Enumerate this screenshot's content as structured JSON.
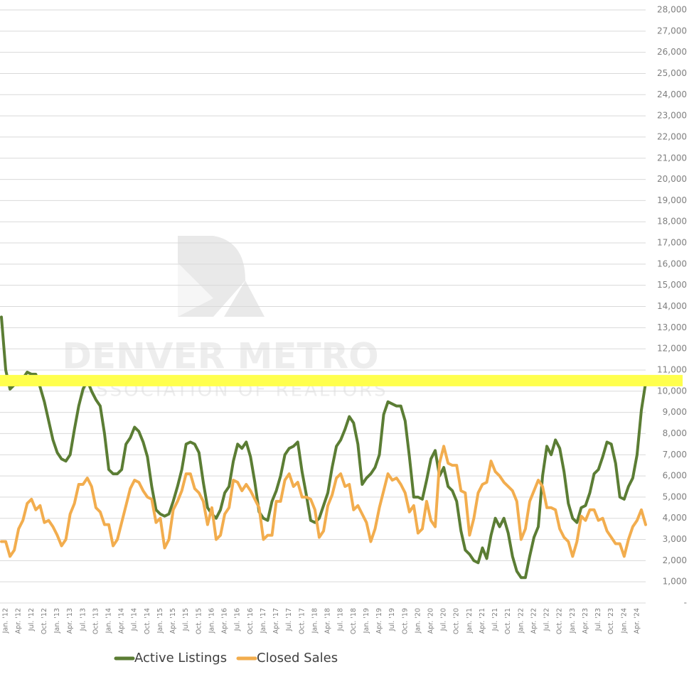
{
  "chart_data": {
    "type": "line",
    "watermark": [
      "DENVER METRO",
      "ASSOCIATION OF REALTORS"
    ],
    "highlight": {
      "value": 10500,
      "color": "#ffff4d"
    },
    "grid": true,
    "legend": "bottom",
    "categories": [
      null,
      "Jan. '12",
      null,
      null,
      "Apr. '12",
      null,
      null,
      "Jul. '12",
      null,
      null,
      "Oct. '12",
      null,
      null,
      "Jan. '13",
      null,
      null,
      "Apr. '13",
      null,
      null,
      "Jul. '13",
      null,
      null,
      "Oct. '13",
      null,
      null,
      "Jan. '14",
      null,
      null,
      "Apr. '14",
      null,
      null,
      "Jul. '14",
      null,
      null,
      "Oct. '14",
      null,
      null,
      "Jan. '15",
      null,
      null,
      "Apr. '15",
      null,
      null,
      "Jul. '15",
      null,
      null,
      "Oct. '15",
      null,
      null,
      "Jan. '16",
      null,
      null,
      "Apr. '16",
      null,
      null,
      "Jul. '16",
      null,
      null,
      "Oct. '16",
      null,
      null,
      "Jan. '17",
      null,
      null,
      "Apr. '17",
      null,
      null,
      "Jul. '17",
      null,
      null,
      "Oct. '17",
      null,
      null,
      "Jan. '18",
      null,
      null,
      "Apr. '18",
      null,
      null,
      "Jul. '18",
      null,
      null,
      "Oct. '18",
      null,
      null,
      "Jan. '19",
      null,
      null,
      "Apr. '19",
      null,
      null,
      "Jul. '19",
      null,
      null,
      "Oct. '19",
      null,
      null,
      "Jan. '20",
      null,
      null,
      "Apr. '20",
      null,
      null,
      "Jul. '20",
      null,
      null,
      "Oct. '20",
      null,
      null,
      "Jan. '21",
      null,
      null,
      "Apr. '21",
      null,
      null,
      "Jul. '21",
      null,
      null,
      "Oct. '21",
      null,
      null,
      "Jan. '22",
      null,
      null,
      "Apr. '22",
      null,
      null,
      "Jul. '22",
      null,
      null,
      "Oct. '22",
      null,
      null,
      "Jan. '23",
      null,
      null,
      "Apr. '23",
      null,
      null,
      "Jul. '23",
      null,
      null,
      "Oct. '23",
      null,
      null,
      "Jan. '24",
      null,
      null,
      "Apr. '24",
      null,
      null
    ],
    "series": [
      {
        "name": "Active Listings",
        "color": "#5b7d34",
        "values": [
          13500,
          11000,
          10100,
          10300,
          10300,
          10600,
          10900,
          10800,
          10800,
          10200,
          9500,
          8600,
          7700,
          7100,
          6800,
          6700,
          7000,
          8200,
          9300,
          10100,
          10500,
          10000,
          9600,
          9300,
          8000,
          6300,
          6100,
          6100,
          6300,
          7500,
          7800,
          8300,
          8100,
          7600,
          6900,
          5500,
          4400,
          4200,
          4100,
          4200,
          4800,
          5500,
          6300,
          7500,
          7600,
          7500,
          7100,
          5700,
          4500,
          4200,
          4000,
          4400,
          5200,
          5500,
          6700,
          7500,
          7300,
          7600,
          6900,
          5700,
          4300,
          4000,
          3900,
          4800,
          5300,
          6000,
          7000,
          7300,
          7400,
          7600,
          6200,
          5100,
          3900,
          3800,
          4000,
          4600,
          5200,
          6400,
          7400,
          7700,
          8200,
          8800,
          8500,
          7500,
          5600,
          5900,
          6100,
          6400,
          7000,
          8900,
          9500,
          9400,
          9300,
          9300,
          8600,
          6900,
          5000,
          5000,
          4900,
          5800,
          6800,
          7200,
          6000,
          6400,
          5500,
          5300,
          4800,
          3400,
          2500,
          2300,
          2000,
          1900,
          2600,
          2100,
          3200,
          4000,
          3600,
          4000,
          3300,
          2200,
          1500,
          1200,
          1200,
          2200,
          3100,
          3600,
          6000,
          7400,
          7000,
          7700,
          7300,
          6200,
          4700,
          4000,
          3800,
          4500,
          4600,
          5200,
          6100,
          6300,
          6900,
          7600,
          7500,
          6600,
          5000,
          4900,
          5500,
          5900,
          7000,
          9100,
          10400
        ]
      },
      {
        "name": "Closed Sales",
        "color": "#f2ad4e",
        "values": [
          2900,
          2900,
          2200,
          2500,
          3500,
          3900,
          4700,
          4900,
          4400,
          4600,
          3800,
          3900,
          3600,
          3200,
          2700,
          3000,
          4200,
          4700,
          5600,
          5600,
          5900,
          5500,
          4500,
          4300,
          3700,
          3700,
          2700,
          3000,
          3800,
          4600,
          5400,
          5800,
          5700,
          5300,
          5000,
          4900,
          3800,
          4000,
          2600,
          3000,
          4400,
          4800,
          5300,
          6100,
          6100,
          5400,
          5200,
          4800,
          3700,
          4500,
          3000,
          3200,
          4200,
          4500,
          5800,
          5700,
          5300,
          5600,
          5300,
          4900,
          4500,
          3000,
          3200,
          3200,
          4800,
          4800,
          5800,
          6100,
          5500,
          5700,
          5000,
          5000,
          4900,
          4400,
          3100,
          3400,
          4600,
          5100,
          5900,
          6100,
          5500,
          5600,
          4400,
          4600,
          4200,
          3800,
          2900,
          3500,
          4500,
          5300,
          6100,
          5800,
          5900,
          5600,
          5200,
          4300,
          4600,
          3300,
          3500,
          4800,
          3900,
          3600,
          6600,
          7400,
          6600,
          6500,
          6500,
          5300,
          5200,
          3200,
          4000,
          5200,
          5600,
          5700,
          6700,
          6200,
          6000,
          5700,
          5500,
          5300,
          4800,
          3000,
          3500,
          4800,
          5300,
          5800,
          5500,
          4500,
          4500,
          4400,
          3500,
          3100,
          2900,
          2200,
          2900,
          4100,
          3900,
          4400,
          4400,
          3900,
          4000,
          3400,
          3100,
          2800,
          2800,
          2200,
          3000,
          3600,
          3900,
          4400,
          3700
        ]
      }
    ],
    "ylim": [
      0,
      28000
    ],
    "yticks": [
      {
        "value": 0,
        "label": "-"
      },
      {
        "value": 1000,
        "label": "1,000"
      },
      {
        "value": 2000,
        "label": "2,000"
      },
      {
        "value": 3000,
        "label": "3,000"
      },
      {
        "value": 4000,
        "label": "4,000"
      },
      {
        "value": 5000,
        "label": "5,000"
      },
      {
        "value": 6000,
        "label": "6,000"
      },
      {
        "value": 7000,
        "label": "7,000"
      },
      {
        "value": 8000,
        "label": "8,000"
      },
      {
        "value": 9000,
        "label": "9,000"
      },
      {
        "value": 10000,
        "label": "10,000"
      },
      {
        "value": 11000,
        "label": "11,000"
      },
      {
        "value": 12000,
        "label": "12,000"
      },
      {
        "value": 13000,
        "label": "13,000"
      },
      {
        "value": 14000,
        "label": "14,000"
      },
      {
        "value": 15000,
        "label": "15,000"
      },
      {
        "value": 16000,
        "label": "16,000"
      },
      {
        "value": 17000,
        "label": "17,000"
      },
      {
        "value": 18000,
        "label": "18,000"
      },
      {
        "value": 19000,
        "label": "19,000"
      },
      {
        "value": 20000,
        "label": "20,000"
      },
      {
        "value": 21000,
        "label": "21,000"
      },
      {
        "value": 22000,
        "label": "22,000"
      },
      {
        "value": 23000,
        "label": "23,000"
      },
      {
        "value": 24000,
        "label": "24,000"
      },
      {
        "value": 25000,
        "label": "25,000"
      },
      {
        "value": 26000,
        "label": "26,000"
      },
      {
        "value": 27000,
        "label": "27,000"
      },
      {
        "value": 28000,
        "label": "28,000"
      }
    ]
  }
}
